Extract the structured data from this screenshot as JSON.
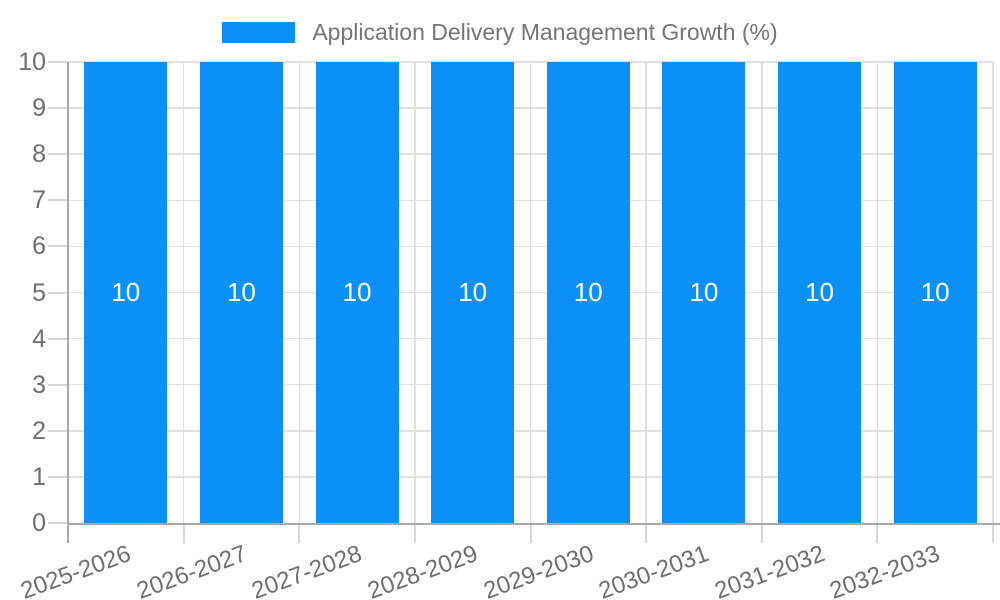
{
  "legend": {
    "label": "Application Delivery Management Growth (%)"
  },
  "colors": {
    "bar": "#0a90f7",
    "bar_value_label": "#ffffff",
    "grid_line": "#e0e0e0",
    "tick_mark": "#d6d6d6",
    "axis_line": "#a8a8a8",
    "axis_label": "#6e6e6e",
    "title_text": "#757575",
    "background": "#ffffff"
  },
  "chart_data": {
    "type": "bar",
    "title": "Application Delivery Management Growth (%)",
    "categories": [
      "2025-2026",
      "2026-2027",
      "2027-2028",
      "2028-2029",
      "2029-2030",
      "2030-2031",
      "2031-2032",
      "2032-2033"
    ],
    "values": [
      10,
      10,
      10,
      10,
      10,
      10,
      10,
      10
    ],
    "value_labels": [
      "10",
      "10",
      "10",
      "10",
      "10",
      "10",
      "10",
      "10"
    ],
    "y_ticks": [
      0,
      1,
      2,
      3,
      4,
      5,
      6,
      7,
      8,
      9,
      10
    ],
    "y_tick_labels": [
      "0",
      "1",
      "2",
      "3",
      "4",
      "5",
      "6",
      "7",
      "8",
      "9",
      "10"
    ],
    "xlabel": "",
    "ylabel": "",
    "ylim": [
      0,
      10
    ],
    "grid": true,
    "legend_position": "top-center",
    "x_label_rotation_deg": -20
  }
}
